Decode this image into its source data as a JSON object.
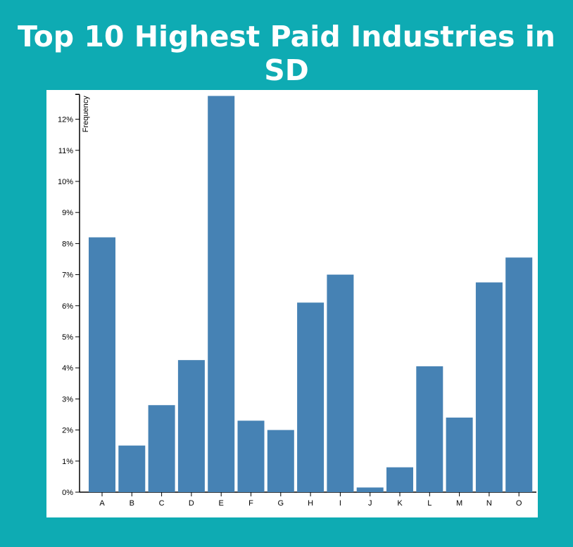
{
  "page": {
    "title": "Top 10 Highest Paid Industries in SD"
  },
  "colors": {
    "background": "#0eabb3",
    "bar": "#4682b4",
    "panel": "#ffffff"
  },
  "chart_data": {
    "type": "bar",
    "title": "Top 10 Highest Paid Industries in SD",
    "xlabel": "",
    "ylabel": "Frequency",
    "categories": [
      "A",
      "B",
      "C",
      "D",
      "E",
      "F",
      "G",
      "H",
      "I",
      "J",
      "K",
      "L",
      "M",
      "N",
      "O"
    ],
    "values": [
      8.2,
      1.5,
      2.8,
      4.25,
      12.75,
      2.3,
      2.0,
      6.1,
      7.0,
      0.15,
      0.8,
      4.05,
      2.4,
      6.75,
      7.55
    ],
    "ylim": [
      0,
      12.8
    ],
    "yticks": [
      0,
      1,
      2,
      3,
      4,
      5,
      6,
      7,
      8,
      9,
      10,
      11,
      12
    ],
    "ytick_format": "%",
    "grid": false
  }
}
